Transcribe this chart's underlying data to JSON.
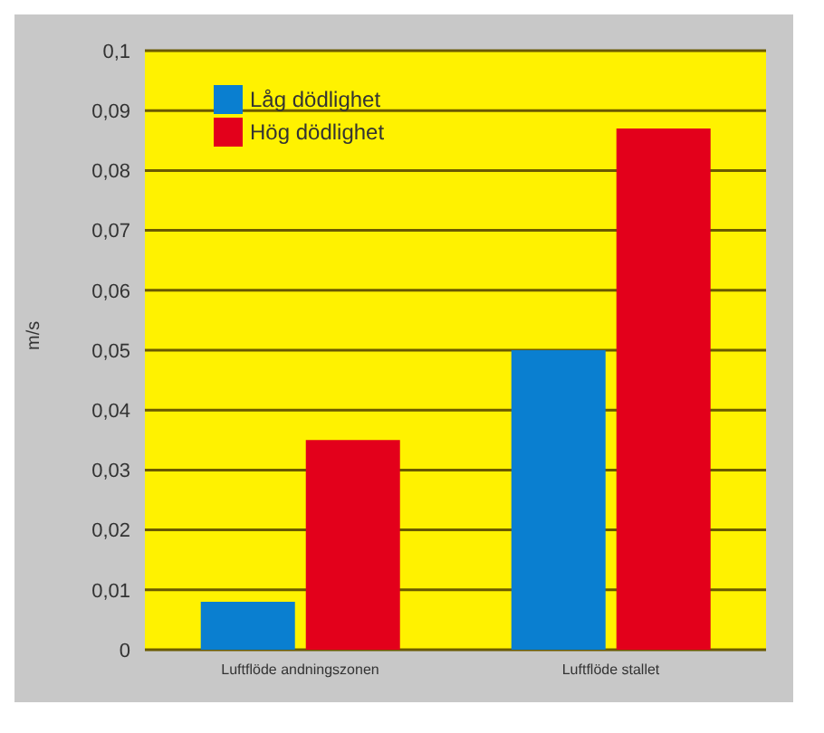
{
  "chart_data": {
    "type": "bar",
    "ylabel": "m/s",
    "categories": [
      "Luftflöde andningszonen",
      "Luftflöde stallet"
    ],
    "series": [
      {
        "name": "Låg dödlighet",
        "color": "#0a7fd0",
        "values": [
          0.008,
          0.05
        ]
      },
      {
        "name": "Hög dödlighet",
        "color": "#e3001b",
        "values": [
          0.035,
          0.087
        ]
      }
    ],
    "ylim": [
      0,
      0.1
    ],
    "yticks": [
      {
        "value": 0,
        "label": "0"
      },
      {
        "value": 0.01,
        "label": "0,01"
      },
      {
        "value": 0.02,
        "label": "0,02"
      },
      {
        "value": 0.03,
        "label": "0,03"
      },
      {
        "value": 0.04,
        "label": "0,04"
      },
      {
        "value": 0.05,
        "label": "0,05"
      },
      {
        "value": 0.06,
        "label": "0,06"
      },
      {
        "value": 0.07,
        "label": "0,07"
      },
      {
        "value": 0.08,
        "label": "0,08"
      },
      {
        "value": 0.09,
        "label": "0,09"
      },
      {
        "value": 0.1,
        "label": "0,1"
      }
    ],
    "grid": "y",
    "legend": "top left"
  }
}
